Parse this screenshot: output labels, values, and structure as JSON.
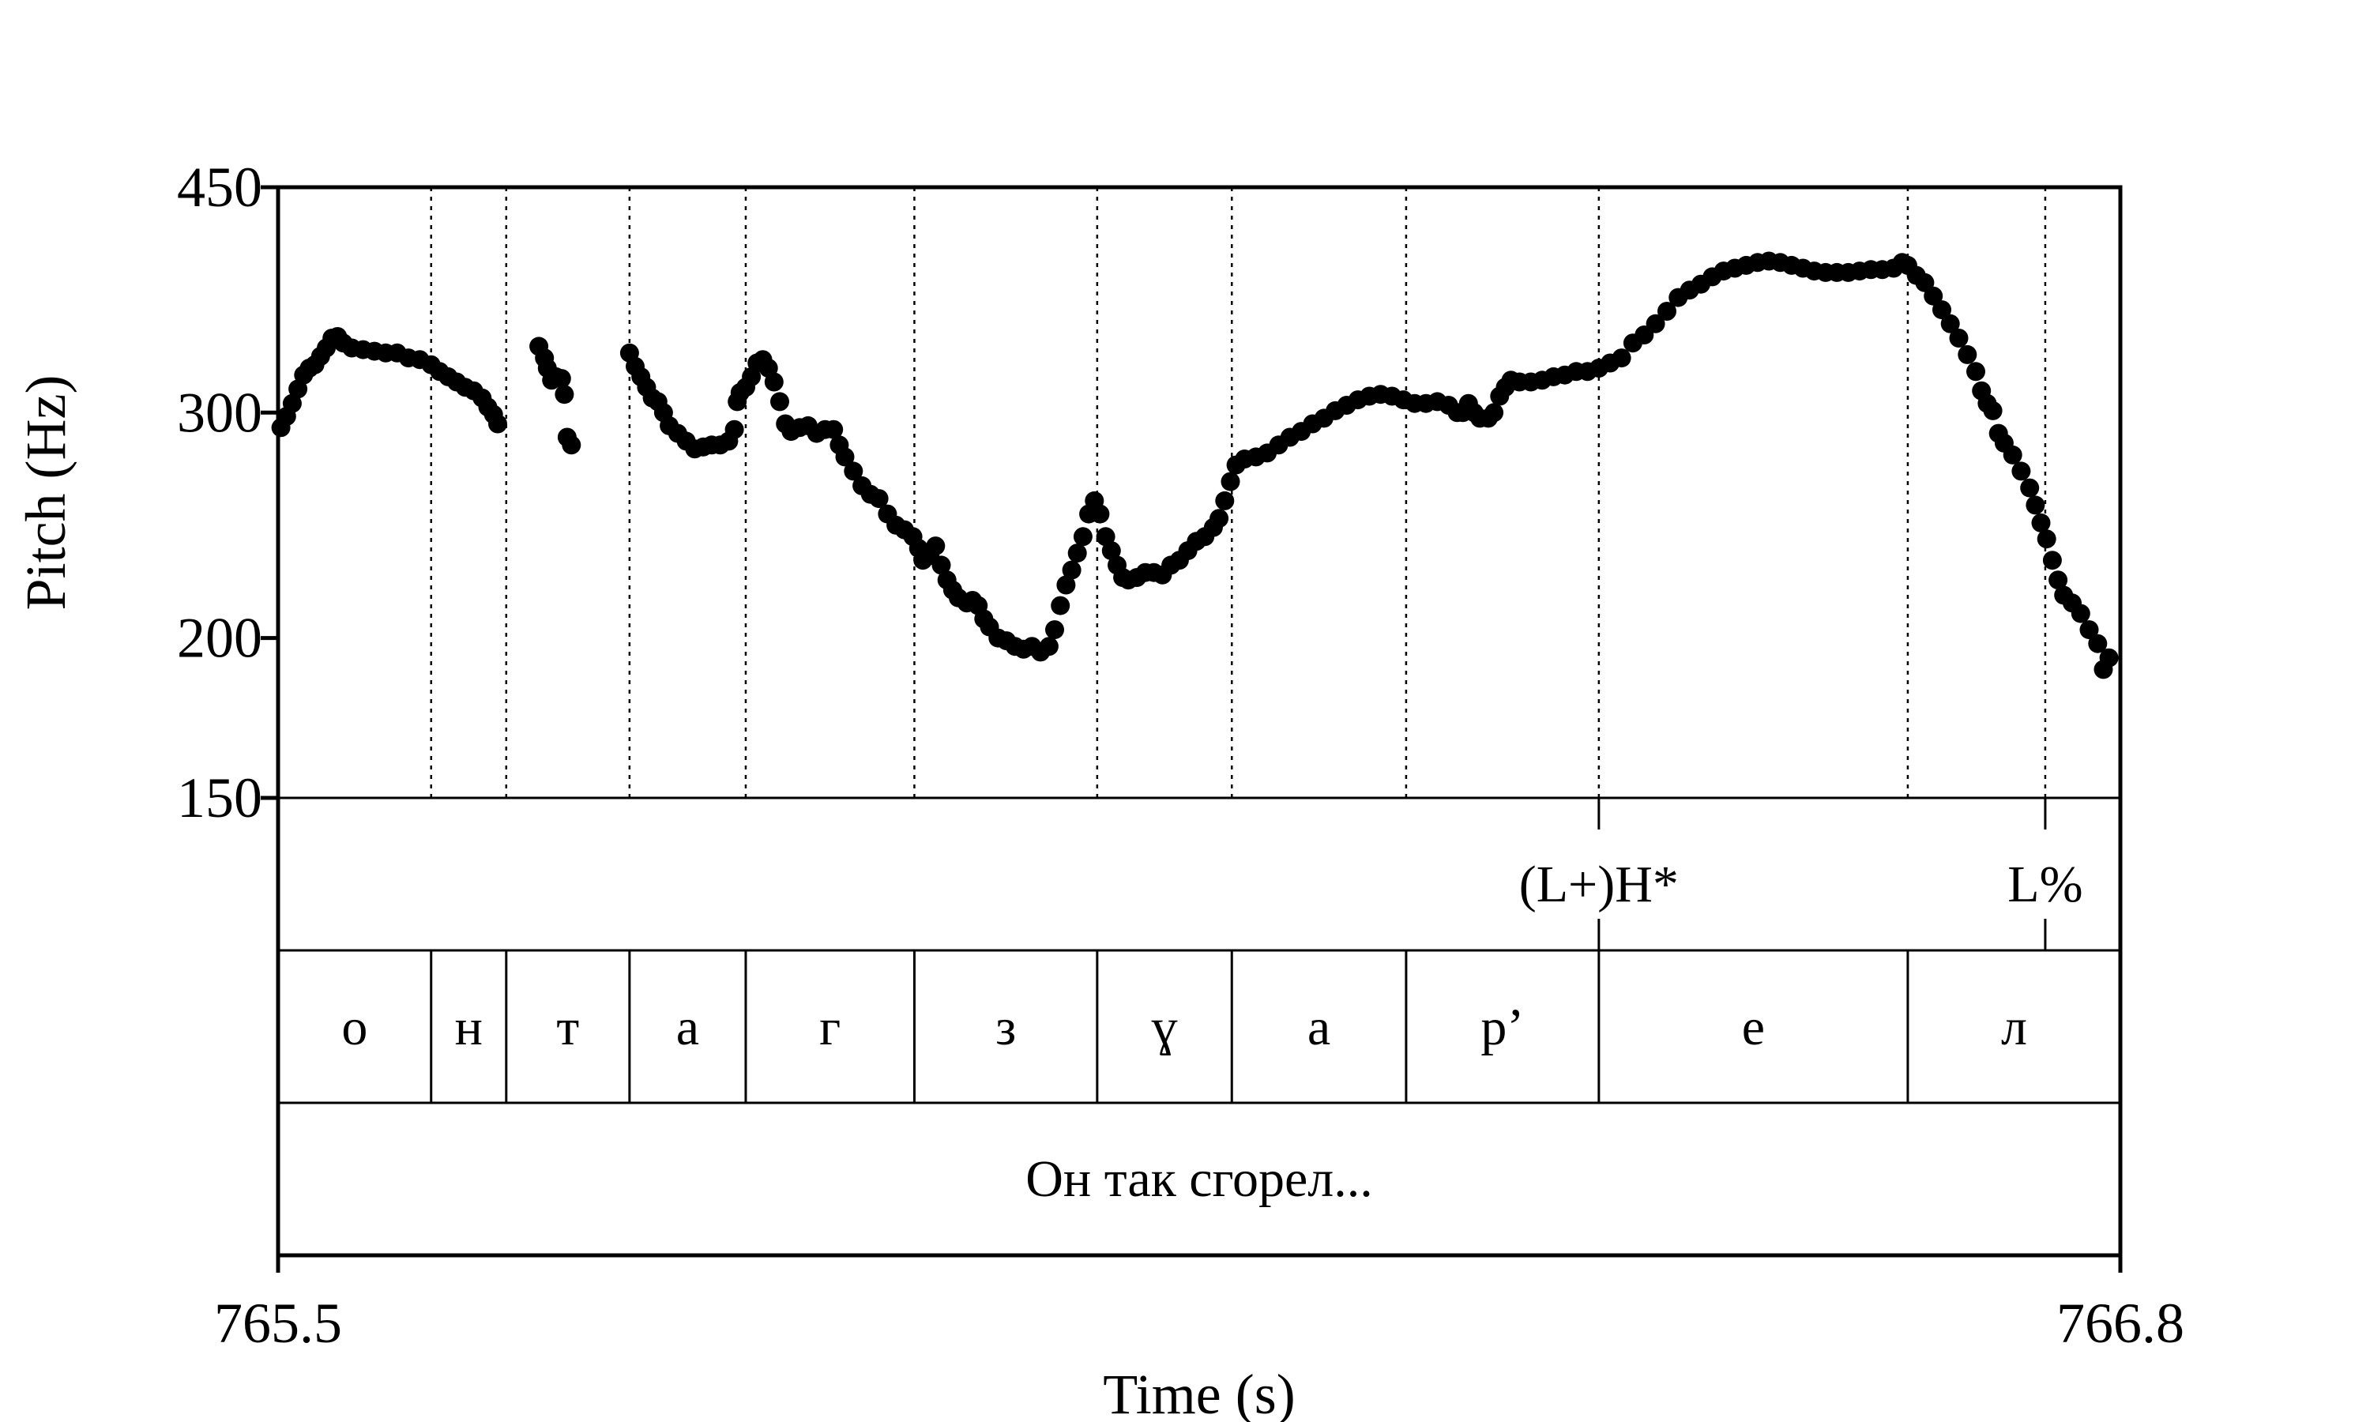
{
  "chart_data": {
    "type": "scatter",
    "title": "",
    "xlabel": "Time (s)",
    "ylabel": "Pitch (Hz)",
    "xlim": [
      765.5,
      766.8
    ],
    "ylim": [
      150,
      450
    ],
    "y_scale": "log",
    "x_ticks": [
      {
        "value": 765.5,
        "label": "765.5"
      },
      {
        "value": 766.8,
        "label": "766.8"
      }
    ],
    "y_ticks": [
      {
        "value": 150,
        "label": "150"
      },
      {
        "value": 200,
        "label": "200"
      },
      {
        "value": 300,
        "label": "300"
      },
      {
        "value": 450,
        "label": "450"
      }
    ],
    "segment_boundaries": [
      765.608,
      765.661,
      765.748,
      765.83,
      765.949,
      766.078,
      766.173,
      766.296,
      766.432,
      766.65,
      766.747
    ],
    "tones": [
      {
        "label": "(L+)H*",
        "time": 766.432
      },
      {
        "label": "L%",
        "time": 766.747
      }
    ],
    "segments": [
      {
        "label": "о",
        "start": 765.5,
        "end": 765.608
      },
      {
        "label": "н",
        "start": 765.608,
        "end": 765.661
      },
      {
        "label": "т",
        "start": 765.661,
        "end": 765.748
      },
      {
        "label": "а",
        "start": 765.748,
        "end": 765.83
      },
      {
        "label": "г",
        "start": 765.83,
        "end": 765.949
      },
      {
        "label": "з",
        "start": 765.949,
        "end": 766.078
      },
      {
        "label": "ɣ",
        "start": 766.078,
        "end": 766.173
      },
      {
        "label": "а",
        "start": 766.173,
        "end": 766.296
      },
      {
        "label": "р’",
        "start": 766.296,
        "end": 766.432
      },
      {
        "label": "е",
        "start": 766.432,
        "end": 766.65
      },
      {
        "label": "л",
        "start": 766.65,
        "end": 766.8
      }
    ],
    "sentence": "Он так сгорел...",
    "series": [
      {
        "points": [
          [
            765.502,
            292
          ],
          [
            765.506,
            298
          ],
          [
            765.51,
            305
          ],
          [
            765.514,
            313
          ],
          [
            765.518,
            321
          ],
          [
            765.522,
            325
          ],
          [
            765.526,
            327
          ],
          [
            765.53,
            332
          ],
          [
            765.534,
            337
          ],
          [
            765.538,
            343
          ],
          [
            765.542,
            344
          ],
          [
            765.546,
            340
          ],
          [
            765.552,
            337
          ],
          [
            765.56,
            336
          ],
          [
            765.568,
            335
          ],
          [
            765.576,
            334
          ],
          [
            765.584,
            334
          ],
          [
            765.592,
            331
          ],
          [
            765.6,
            330
          ],
          [
            765.608,
            327
          ],
          [
            765.614,
            323
          ],
          [
            765.62,
            320
          ],
          [
            765.626,
            317
          ],
          [
            765.632,
            314
          ],
          [
            765.638,
            312
          ],
          [
            765.644,
            308
          ],
          [
            765.648,
            303
          ],
          [
            765.652,
            299
          ],
          [
            765.655,
            294
          ],
          [
            765.684,
            338
          ],
          [
            765.688,
            331
          ],
          [
            765.69,
            325
          ],
          [
            765.693,
            318
          ],
          [
            765.696,
            320
          ],
          [
            765.7,
            319
          ],
          [
            765.702,
            310
          ],
          [
            765.704,
            287
          ],
          [
            765.707,
            283
          ],
          [
            765.748,
            334
          ],
          [
            765.752,
            326
          ],
          [
            765.756,
            320
          ],
          [
            765.76,
            314
          ],
          [
            765.764,
            308
          ],
          [
            765.768,
            306
          ],
          [
            765.772,
            300
          ],
          [
            765.776,
            293
          ],
          [
            765.782,
            289
          ],
          [
            765.788,
            285
          ],
          [
            765.794,
            281
          ],
          [
            765.8,
            282
          ],
          [
            765.806,
            283
          ],
          [
            765.812,
            283
          ],
          [
            765.818,
            285
          ],
          [
            765.822,
            291
          ],
          [
            765.824,
            306
          ],
          [
            765.826,
            311
          ],
          [
            765.83,
            314
          ],
          [
            765.834,
            320
          ],
          [
            765.838,
            328
          ],
          [
            765.842,
            330
          ],
          [
            765.846,
            325
          ],
          [
            765.85,
            317
          ],
          [
            765.854,
            306
          ],
          [
            765.858,
            294
          ],
          [
            765.862,
            290
          ],
          [
            765.868,
            292
          ],
          [
            765.874,
            293
          ],
          [
            765.88,
            289
          ],
          [
            765.886,
            291
          ],
          [
            765.892,
            291
          ],
          [
            765.896,
            283
          ],
          [
            765.9,
            277
          ],
          [
            765.906,
            270
          ],
          [
            765.912,
            263
          ],
          [
            765.918,
            259
          ],
          [
            765.924,
            257
          ],
          [
            765.93,
            250
          ],
          [
            765.936,
            245
          ],
          [
            765.942,
            243
          ],
          [
            765.948,
            240
          ],
          [
            765.952,
            235
          ],
          [
            765.955,
            230
          ],
          [
            765.96,
            232
          ],
          [
            765.964,
            236
          ],
          [
            765.968,
            228
          ],
          [
            765.972,
            222
          ],
          [
            765.976,
            218
          ],
          [
            765.98,
            215
          ],
          [
            765.986,
            213
          ],
          [
            765.99,
            214
          ],
          [
            765.994,
            212
          ],
          [
            765.998,
            207
          ],
          [
            766.002,
            204
          ],
          [
            766.008,
            200
          ],
          [
            766.014,
            199
          ],
          [
            766.02,
            197
          ],
          [
            766.026,
            196
          ],
          [
            766.032,
            197
          ],
          [
            766.038,
            195
          ],
          [
            766.044,
            197
          ],
          [
            766.048,
            203
          ],
          [
            766.052,
            212
          ],
          [
            766.056,
            220
          ],
          [
            766.06,
            226
          ],
          [
            766.064,
            233
          ],
          [
            766.068,
            240
          ],
          [
            766.072,
            250
          ],
          [
            766.076,
            256
          ],
          [
            766.08,
            250
          ],
          [
            766.084,
            240
          ],
          [
            766.088,
            234
          ],
          [
            766.092,
            228
          ],
          [
            766.096,
            223
          ],
          [
            766.1,
            222
          ],
          [
            766.106,
            223
          ],
          [
            766.112,
            225
          ],
          [
            766.118,
            225
          ],
          [
            766.124,
            224
          ],
          [
            766.13,
            228
          ],
          [
            766.136,
            230
          ],
          [
            766.142,
            234
          ],
          [
            766.148,
            238
          ],
          [
            766.154,
            240
          ],
          [
            766.16,
            244
          ],
          [
            766.164,
            248
          ],
          [
            766.168,
            256
          ],
          [
            766.172,
            265
          ],
          [
            766.176,
            273
          ],
          [
            766.182,
            276
          ],
          [
            766.19,
            277
          ],
          [
            766.198,
            279
          ],
          [
            766.206,
            283
          ],
          [
            766.214,
            287
          ],
          [
            766.222,
            290
          ],
          [
            766.23,
            294
          ],
          [
            766.238,
            297
          ],
          [
            766.246,
            301
          ],
          [
            766.254,
            304
          ],
          [
            766.262,
            307
          ],
          [
            766.27,
            309
          ],
          [
            766.278,
            310
          ],
          [
            766.286,
            309
          ],
          [
            766.294,
            307
          ],
          [
            766.302,
            305
          ],
          [
            766.31,
            305
          ],
          [
            766.318,
            306
          ],
          [
            766.326,
            304
          ],
          [
            766.332,
            300
          ],
          [
            766.336,
            300
          ],
          [
            766.34,
            305
          ],
          [
            766.344,
            300
          ],
          [
            766.348,
            297
          ],
          [
            766.354,
            297
          ],
          [
            766.358,
            300
          ],
          [
            766.362,
            309
          ],
          [
            766.366,
            314
          ],
          [
            766.37,
            318
          ],
          [
            766.376,
            317
          ],
          [
            766.384,
            317
          ],
          [
            766.392,
            318
          ],
          [
            766.4,
            320
          ],
          [
            766.408,
            321
          ],
          [
            766.416,
            323
          ],
          [
            766.424,
            323
          ],
          [
            766.432,
            325
          ],
          [
            766.44,
            328
          ],
          [
            766.448,
            331
          ],
          [
            766.456,
            340
          ],
          [
            766.464,
            345
          ],
          [
            766.472,
            352
          ],
          [
            766.48,
            360
          ],
          [
            766.488,
            369
          ],
          [
            766.496,
            374
          ],
          [
            766.504,
            378
          ],
          [
            766.512,
            383
          ],
          [
            766.52,
            387
          ],
          [
            766.528,
            389
          ],
          [
            766.536,
            391
          ],
          [
            766.544,
            393
          ],
          [
            766.552,
            394
          ],
          [
            766.56,
            393
          ],
          [
            766.568,
            391
          ],
          [
            766.576,
            389
          ],
          [
            766.584,
            387
          ],
          [
            766.592,
            386
          ],
          [
            766.6,
            386
          ],
          [
            766.608,
            386
          ],
          [
            766.616,
            387
          ],
          [
            766.624,
            388
          ],
          [
            766.632,
            388
          ],
          [
            766.64,
            389
          ],
          [
            766.646,
            393
          ],
          [
            766.65,
            391
          ],
          [
            766.656,
            384
          ],
          [
            766.662,
            379
          ],
          [
            766.668,
            370
          ],
          [
            766.674,
            361
          ],
          [
            766.68,
            352
          ],
          [
            766.686,
            343
          ],
          [
            766.692,
            333
          ],
          [
            766.698,
            323
          ],
          [
            766.702,
            312
          ],
          [
            766.706,
            305
          ],
          [
            766.71,
            301
          ],
          [
            766.714,
            289
          ],
          [
            766.718,
            284
          ],
          [
            766.724,
            278
          ],
          [
            766.73,
            270
          ],
          [
            766.736,
            262
          ],
          [
            766.74,
            254
          ],
          [
            766.744,
            246
          ],
          [
            766.748,
            239
          ],
          [
            766.752,
            230
          ],
          [
            766.756,
            222
          ],
          [
            766.76,
            216
          ],
          [
            766.766,
            213
          ],
          [
            766.772,
            209
          ],
          [
            766.778,
            203
          ],
          [
            766.784,
            198
          ],
          [
            766.788,
            189
          ],
          [
            766.792,
            193
          ]
        ]
      }
    ]
  }
}
